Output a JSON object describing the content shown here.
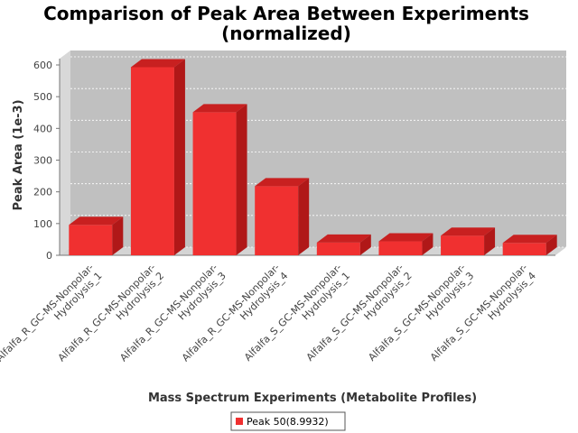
{
  "chart_data": {
    "type": "bar",
    "title_line1": "Comparison of Peak Area Between Experiments",
    "title_line2": "(normalized)",
    "xlabel": "Mass Spectrum Experiments (Metabolite Profiles)",
    "ylabel": "Peak Area (1e-3)",
    "ylim": [
      0,
      620
    ],
    "yticks": [
      0,
      100,
      200,
      300,
      400,
      500,
      600
    ],
    "grid": true,
    "legend_position": "bottom-center",
    "categories": [
      [
        "Alfalfa_R_GC-MS-Nonpolar-",
        "Hydrolysis_1"
      ],
      [
        "Alfalfa_R_GC-MS-Nonpolar-",
        "Hydrolysis_2"
      ],
      [
        "Alfalfa_R_GC-MS-Nonpolar-",
        "Hydrolysis_3"
      ],
      [
        "Alfalfa_R_GC-MS-Nonpolar-",
        "Hydrolysis_4"
      ],
      [
        "Alfalfa_S_GC-MS-Nonpolar-",
        "Hydrolysis_1"
      ],
      [
        "Alfalfa_S_GC-MS-Nonpolar-",
        "Hydrolysis_2"
      ],
      [
        "Alfalfa_S_GC-MS-Nonpolar-",
        "Hydrolysis_3"
      ],
      [
        "Alfalfa_S_GC-MS-Nonpolar-",
        "Hydrolysis_4"
      ]
    ],
    "series": [
      {
        "name": "Peak 50(8.9932)",
        "color": "#f03030",
        "values": [
          96,
          593,
          451,
          218,
          40,
          44,
          62,
          39
        ]
      }
    ]
  }
}
